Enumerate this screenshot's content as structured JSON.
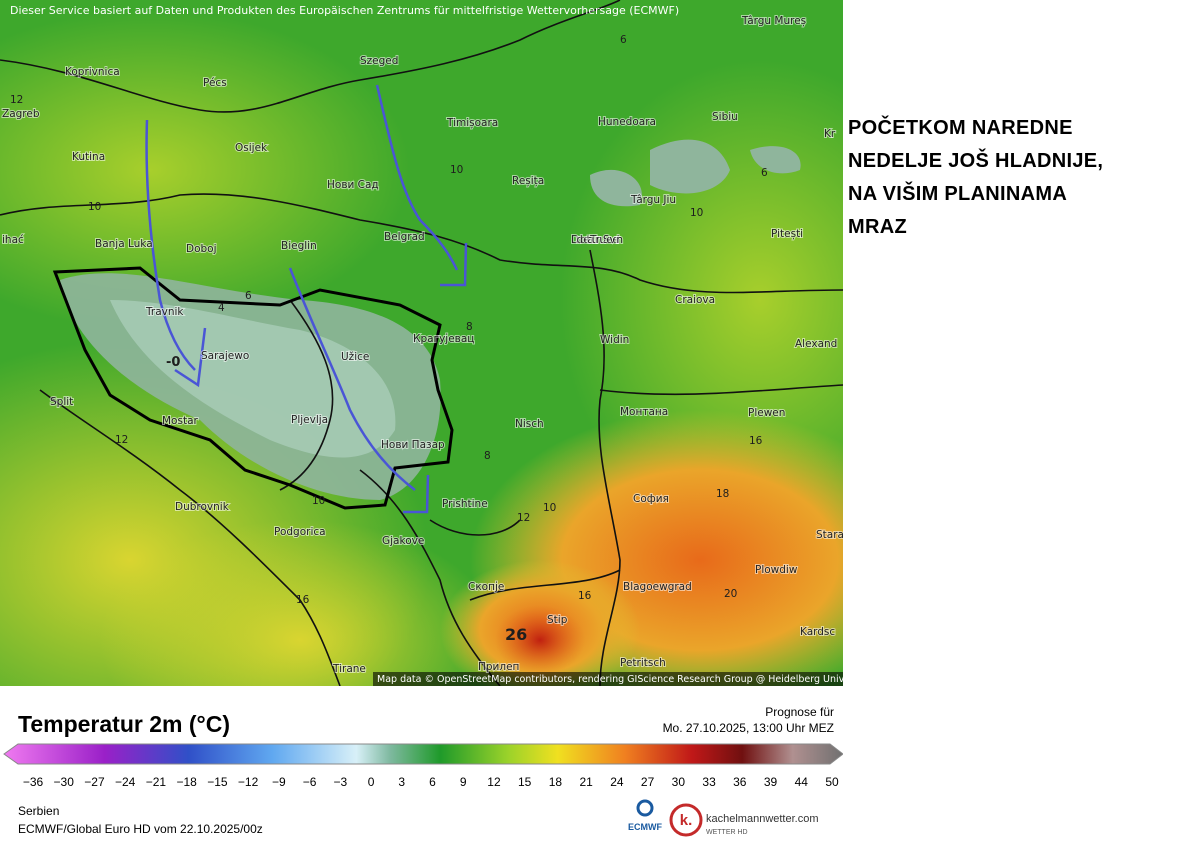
{
  "map": {
    "source_note": "Dieser Service basiert auf Daten und Produkten des Europäischen Zentrums für mittelfristige Wettervorhersage (ECMWF)",
    "attribution": "Map data © OpenStreetMap contributors, rendering GIScience Research Group @ Heidelberg University",
    "cities": [
      "Koprivnica",
      "Pécs",
      "Szeged",
      "Zagreb",
      "Kutina",
      "Osijek",
      "Timișoara",
      "Hunedoara",
      "Sibiu",
      "Târgu Mureș",
      "Kr",
      "Нови Сад",
      "Reșița",
      "Târgu Jiu",
      "Banja Luka",
      "Doboj",
      "Bieglin",
      "Belgrad",
      "Drobeta-Turnu Severin",
      "Pitești",
      "ihać",
      "Craiova",
      "Travnik",
      "Sarajewo",
      "Užice",
      "Крагујевац",
      "Widin",
      "Alexand",
      "Split",
      "Mostar",
      "Pljevlja",
      "Нови Пазар",
      "Nisch",
      "Монтана",
      "Plewen",
      "София",
      "Prishtine",
      "Dubrovnik",
      "Podgorica",
      "Gjakove",
      "Stara",
      "Скопје",
      "Blagoewgrad",
      "Plowdiw",
      "Stip",
      "Kardsc",
      "Tirane",
      "Прилеп",
      "Petritsch"
    ],
    "temperature_labels": [
      "12",
      "10",
      "10",
      "10",
      "6",
      "6",
      "8",
      "6",
      "4",
      "-0",
      "12",
      "8",
      "10",
      "12",
      "10",
      "16",
      "18",
      "20",
      "16",
      "16",
      "26"
    ]
  },
  "annotation": [
    "POČETKOM NAREDNE",
    "NEDELJE JOŠ HLADNIJE,",
    "NA VIŠIM PLANINAMA",
    "MRAZ"
  ],
  "legend": {
    "title": "Temperatur 2m (°C)",
    "forecast_label": "Prognose für",
    "forecast_time": "Mo. 27.10.2025, 13:00 Uhr MEZ",
    "scale_ticks": [
      "−36",
      "−30",
      "−27",
      "−24",
      "−21",
      "−18",
      "−15",
      "−12",
      "−9",
      "−6",
      "−3",
      "0",
      "3",
      "6",
      "9",
      "12",
      "15",
      "18",
      "21",
      "24",
      "27",
      "30",
      "33",
      "36",
      "39",
      "44",
      "50"
    ],
    "region": "Serbien",
    "model_run": "ECMWF/Global Euro HD vom  22.10.2025/00z",
    "logo_ecmwf": "ECMWF",
    "logo_site": "kachelmannwetter.com",
    "logo_sub": "WETTER HD"
  }
}
